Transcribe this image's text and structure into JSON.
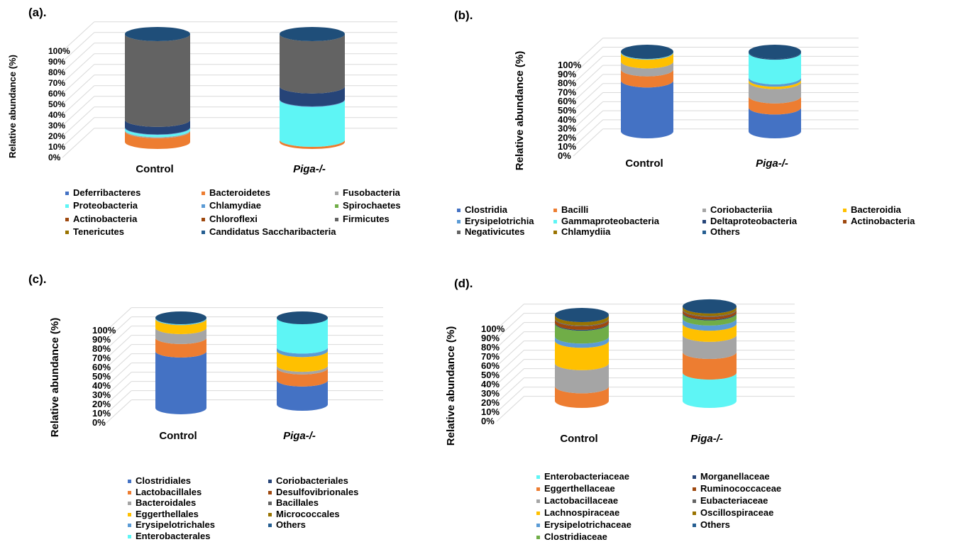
{
  "colors": {
    "Deferribacteres": "#4472c4",
    "Bacteroidetes": "#ed7d31",
    "Fusobacteria": "#a5a5a5",
    "Proteobacteria": "#5ef5f5",
    "Chlamydiae": "#5b9bd5",
    "Spirochaetes": "#70ad47",
    "Actinobacteria": "#264478",
    "Chloroflexi": "#9e480e",
    "Firmicutes": "#636363",
    "Tenericutes": "#997300",
    "Candidatus Saccharibacteria": "#255e91"
  },
  "chart_data": [
    {
      "type": "bar",
      "panel_label": "(a).",
      "ylabel": "Relative abundance (%)",
      "categories": [
        "Control",
        "Piga-/-"
      ],
      "ticks": [
        "0%",
        "10%",
        "20%",
        "30%",
        "40%",
        "50%",
        "60%",
        "70%",
        "80%",
        "90%",
        "100%"
      ],
      "ylim": [
        0,
        100
      ],
      "legend": [
        "Deferribacteres",
        "Bacteroidetes",
        "Fusobacteria",
        "Proteobacteria",
        "Chlamydiae",
        "Spirochaetes",
        "Actinobacteria",
        "Chloroflexi",
        "Firmicutes",
        "Tenericutes",
        "Candidatus Saccharibacteria"
      ],
      "series": [
        {
          "name": "Bacteroidetes",
          "color": "#ed7d31",
          "values": [
            10,
            2
          ]
        },
        {
          "name": "Fusobacteria",
          "color": "#a5a5a5",
          "values": [
            1,
            0
          ]
        },
        {
          "name": "Proteobacteria",
          "color": "#5ef5f5",
          "values": [
            2,
            37
          ]
        },
        {
          "name": "Chlamydiae",
          "color": "#5b9bd5",
          "values": [
            0.5,
            0.5
          ]
        },
        {
          "name": "Actinobacteria",
          "color": "#264478",
          "values": [
            7,
            12
          ]
        },
        {
          "name": "Firmicutes",
          "color": "#636363",
          "values": [
            79.5,
            48.5
          ]
        }
      ]
    },
    {
      "type": "bar",
      "panel_label": "(b).",
      "ylabel": "Relative abundance (%)",
      "categories": [
        "Control",
        "Piga-/-"
      ],
      "ticks": [
        "0%",
        "10%",
        "20%",
        "30%",
        "40%",
        "50%",
        "60%",
        "70%",
        "80%",
        "90%",
        "100%"
      ],
      "ylim": [
        0,
        100
      ],
      "legend": [
        "Clostridia",
        "Bacilli",
        "Coriobacteriia",
        "Bacteroidia",
        "Erysipelotrichia",
        "Gammaproteobacteria",
        "Deltaproteobacteria",
        "Actinobacteria",
        "Negativicutes",
        "Chlamydiia",
        "Others"
      ],
      "series": [
        {
          "name": "Clostridia",
          "color": "#4472c4",
          "values": [
            64,
            30
          ]
        },
        {
          "name": "Bacilli",
          "color": "#ed7d31",
          "values": [
            14,
            14
          ]
        },
        {
          "name": "Coriobacteriia",
          "color": "#a5a5a5",
          "values": [
            10,
            18
          ]
        },
        {
          "name": "Bacteroidia",
          "color": "#ffc000",
          "values": [
            11,
            3
          ]
        },
        {
          "name": "Erysipelotrichia",
          "color": "#5b9bd5",
          "values": [
            0.5,
            3
          ]
        },
        {
          "name": "Gammaproteobacteria",
          "color": "#5ef5f5",
          "values": [
            0.5,
            31
          ]
        },
        {
          "name": "Deltaproteobacteria",
          "color": "#264478",
          "values": [
            0,
            1
          ]
        }
      ]
    },
    {
      "type": "bar",
      "panel_label": "(c).",
      "ylabel": "Relative abundance (%)",
      "categories": [
        "Control",
        "Piga-/-"
      ],
      "ticks": [
        "0%",
        "10%",
        "20%",
        "30%",
        "40%",
        "50%",
        "60%",
        "70%",
        "80%",
        "90%",
        "100%"
      ],
      "ylim": [
        0,
        100
      ],
      "legend": [
        "Clostridiales",
        "Lactobacillales",
        "Bacteroidales",
        "Eggerthellales",
        "Erysipelotrichales",
        "Enterobacterales",
        "Coriobacteriales",
        "Desulfovibrionales",
        "Bacillales",
        "Micrococcales",
        "Others"
      ],
      "series": [
        {
          "name": "Clostridiales",
          "color": "#4472c4",
          "values": [
            63,
            28
          ]
        },
        {
          "name": "Lactobacillales",
          "color": "#ed7d31",
          "values": [
            15,
            14
          ]
        },
        {
          "name": "Bacteroidales",
          "color": "#a5a5a5",
          "values": [
            11,
            3
          ]
        },
        {
          "name": "Eggerthellales",
          "color": "#ffc000",
          "values": [
            10,
            17
          ]
        },
        {
          "name": "Erysipelotrichales",
          "color": "#5b9bd5",
          "values": [
            0.5,
            4
          ]
        },
        {
          "name": "Enterobacterales",
          "color": "#5ef5f5",
          "values": [
            0.5,
            34
          ]
        }
      ]
    },
    {
      "type": "bar",
      "panel_label": "(d).",
      "ylabel": "Relative abundance (%)",
      "categories": [
        "Control",
        "Piga-/-"
      ],
      "ticks": [
        "0%",
        "10%",
        "20%",
        "30%",
        "40%",
        "50%",
        "60%",
        "70%",
        "80%",
        "90%",
        "100%"
      ],
      "ylim": [
        0,
        100
      ],
      "legend": [
        "Enterobacteriaceae",
        "Eggerthellaceae",
        "Lactobacillaceae",
        "Lachnospiraceae",
        "Erysipelotrichaceae",
        "Clostridiaceae",
        "Morganellaceae",
        "Ruminococcaceae",
        "Eubacteriaceae",
        "Oscillospiraceae",
        "Others"
      ],
      "series": [
        {
          "name": "Enterobacteriaceae",
          "color": "#5ef5f5",
          "values": [
            0,
            33
          ]
        },
        {
          "name": "Eggerthellaceae",
          "color": "#ed7d31",
          "values": [
            17,
            24
          ]
        },
        {
          "name": "Lactobacillaceae",
          "color": "#a5a5a5",
          "values": [
            27,
            20
          ]
        },
        {
          "name": "Lachnospiraceae",
          "color": "#ffc000",
          "values": [
            26,
            13
          ]
        },
        {
          "name": "Erysipelotrichaceae",
          "color": "#5b9bd5",
          "values": [
            5,
            6
          ]
        },
        {
          "name": "Clostridiaceae",
          "color": "#70ad47",
          "values": [
            15,
            6
          ]
        },
        {
          "name": "Morganellaceae",
          "color": "#264478",
          "values": [
            1,
            1
          ]
        },
        {
          "name": "Ruminococcaceae",
          "color": "#9e480e",
          "values": [
            4,
            3
          ]
        },
        {
          "name": "Eubacteriaceae",
          "color": "#636363",
          "values": [
            1,
            1
          ]
        },
        {
          "name": "Oscillospiraceae",
          "color": "#997300",
          "values": [
            4,
            3
          ]
        }
      ]
    }
  ],
  "legend_colors": {
    "Clostridia": "#4472c4",
    "Bacilli": "#ed7d31",
    "Coriobacteriia": "#a5a5a5",
    "Bacteroidia": "#ffc000",
    "Erysipelotrichia": "#5b9bd5",
    "Gammaproteobacteria": "#5ef5f5",
    "Deltaproteobacteria": "#264478",
    "Actinobacteria": "#9e480e",
    "Negativicutes": "#636363",
    "Chlamydiia": "#997300",
    "Others": "#255e91",
    "Clostridiales": "#4472c4",
    "Lactobacillales": "#ed7d31",
    "Bacteroidales": "#a5a5a5",
    "Eggerthellales": "#ffc000",
    "Erysipelotrichales": "#5b9bd5",
    "Enterobacterales": "#5ef5f5",
    "Coriobacteriales": "#264478",
    "Desulfovibrionales": "#9e480e",
    "Bacillales": "#636363",
    "Micrococcales": "#997300",
    "Enterobacteriaceae": "#5ef5f5",
    "Eggerthellaceae": "#ed7d31",
    "Lactobacillaceae": "#a5a5a5",
    "Lachnospiraceae": "#ffc000",
    "Erysipelotrichaceae": "#5b9bd5",
    "Clostridiaceae": "#70ad47",
    "Morganellaceae": "#264478",
    "Ruminococcaceae": "#9e480e",
    "Eubacteriaceae": "#636363",
    "Oscillospiraceae": "#997300"
  }
}
